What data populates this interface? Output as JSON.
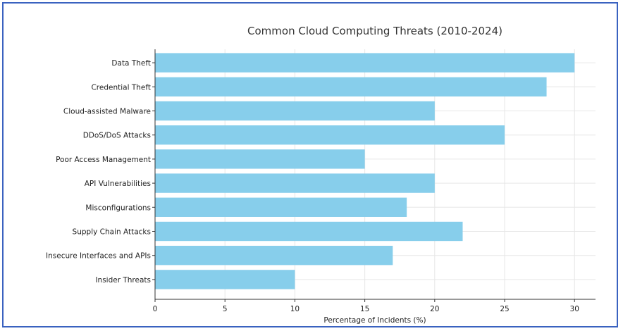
{
  "chart_data": {
    "type": "bar",
    "orientation": "horizontal",
    "title": "Common Cloud Computing Threats (2010-2024)",
    "xlabel": "Percentage of Incidents (%)",
    "ylabel": "",
    "categories": [
      "Data Theft",
      "Credential Theft",
      "Cloud-assisted Malware",
      "DDoS/DoS Attacks",
      "Poor Access Management",
      "API Vulnerabilities",
      "Misconfigurations",
      "Supply Chain Attacks",
      "Insecure Interfaces and APIs",
      "Insider Threats"
    ],
    "values": [
      30,
      28,
      20,
      25,
      15,
      20,
      18,
      22,
      17,
      10
    ],
    "xlim": [
      0,
      31.5
    ],
    "xticks": [
      0,
      5,
      10,
      15,
      20,
      25,
      30
    ],
    "grid": true,
    "bar_color": "#87ceeb",
    "grid_color": "#e6e6e6",
    "border_color": "#3a62c0"
  }
}
